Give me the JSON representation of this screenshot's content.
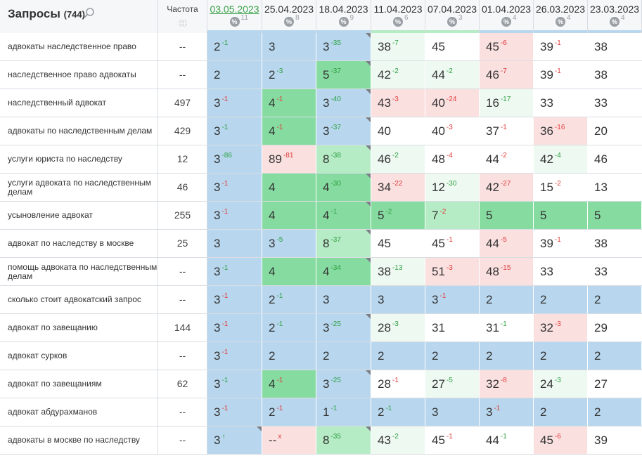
{
  "header": {
    "queries_title": "Запросы",
    "queries_count": "(744)",
    "frequency_label": "Частота"
  },
  "columns": [
    {
      "date": "03.05.2023",
      "count": "11",
      "active": true
    },
    {
      "date": "25.04.2023",
      "count": "8"
    },
    {
      "date": "18.04.2023",
      "count": "9"
    },
    {
      "date": "11.04.2023",
      "count": "6"
    },
    {
      "date": "07.04.2023",
      "count": "3"
    },
    {
      "date": "01.04.2023",
      "count": "4"
    },
    {
      "date": "26.03.2023",
      "count": "4"
    },
    {
      "date": "23.03.2023",
      "count": "4"
    }
  ],
  "colors": {
    "blue": "#b8d7ee",
    "green": "#86dba0",
    "light_green": "#b5ebc5",
    "pale_green": "#eef9f1",
    "red": "#fbe0e0",
    "up": "#2ea043",
    "down": "#e23b3b"
  },
  "rows": [
    {
      "query": "адвокаты наследственное право",
      "freq": "--",
      "cells": [
        {
          "v": "2",
          "d": "-1",
          "t": "up",
          "bg": "blue"
        },
        {
          "v": "3",
          "bg": "blue"
        },
        {
          "v": "3",
          "d": "-35",
          "t": "up",
          "bg": "blue",
          "corner": true
        },
        {
          "v": "38",
          "d": "-7",
          "t": "up",
          "bg": "pale"
        },
        {
          "v": "45",
          "bg": "white"
        },
        {
          "v": "45",
          "d": "-6",
          "t": "dn",
          "bg": "red"
        },
        {
          "v": "39",
          "d": "-1",
          "t": "dn",
          "bg": "white"
        },
        {
          "v": "38",
          "bg": "white"
        }
      ]
    },
    {
      "query": "наследственное право адвокаты",
      "freq": "--",
      "cells": [
        {
          "v": "2",
          "bg": "blue"
        },
        {
          "v": "2",
          "d": "-3",
          "t": "up",
          "bg": "blue"
        },
        {
          "v": "5",
          "d": "-37",
          "t": "up",
          "bg": "green",
          "corner": true
        },
        {
          "v": "42",
          "d": "-2",
          "t": "up",
          "bg": "pale"
        },
        {
          "v": "44",
          "d": "-2",
          "t": "up",
          "bg": "pale"
        },
        {
          "v": "46",
          "d": "-7",
          "t": "dn",
          "bg": "red"
        },
        {
          "v": "39",
          "d": "-1",
          "t": "dn",
          "bg": "white"
        },
        {
          "v": "38",
          "bg": "white"
        }
      ]
    },
    {
      "query": "наследственный адвокат",
      "freq": "497",
      "cells": [
        {
          "v": "3",
          "d": "-1",
          "t": "dn",
          "bg": "blue"
        },
        {
          "v": "4",
          "d": "-1",
          "t": "dn",
          "bg": "green"
        },
        {
          "v": "3",
          "d": "-40",
          "t": "up",
          "bg": "blue",
          "corner": true
        },
        {
          "v": "43",
          "d": "-3",
          "t": "dn",
          "bg": "red"
        },
        {
          "v": "40",
          "d": "-24",
          "t": "dn",
          "bg": "red"
        },
        {
          "v": "16",
          "d": "-17",
          "t": "up",
          "bg": "pale"
        },
        {
          "v": "33",
          "bg": "white"
        },
        {
          "v": "33",
          "bg": "white"
        }
      ]
    },
    {
      "query": "адвокаты по наследственным делам",
      "freq": "429",
      "cells": [
        {
          "v": "3",
          "d": "-1",
          "t": "up",
          "bg": "blue"
        },
        {
          "v": "4",
          "d": "-1",
          "t": "dn",
          "bg": "green"
        },
        {
          "v": "3",
          "d": "-37",
          "t": "up",
          "bg": "blue",
          "corner": true
        },
        {
          "v": "40",
          "bg": "white"
        },
        {
          "v": "40",
          "d": "-3",
          "t": "dn",
          "bg": "white"
        },
        {
          "v": "37",
          "d": "-1",
          "t": "dn",
          "bg": "white"
        },
        {
          "v": "36",
          "d": "-16",
          "t": "dn",
          "bg": "red"
        },
        {
          "v": "20",
          "bg": "white"
        }
      ]
    },
    {
      "query": "услуги юриста по наследству",
      "freq": "12",
      "cells": [
        {
          "v": "3",
          "d": "-86",
          "t": "up",
          "bg": "blue"
        },
        {
          "v": "89",
          "d": "-81",
          "t": "dn",
          "bg": "red"
        },
        {
          "v": "8",
          "d": "-38",
          "t": "up",
          "bg": "lgreen",
          "corner": true
        },
        {
          "v": "46",
          "d": "-2",
          "t": "up",
          "bg": "pale"
        },
        {
          "v": "48",
          "d": "-4",
          "t": "dn",
          "bg": "white"
        },
        {
          "v": "44",
          "d": "-2",
          "t": "dn",
          "bg": "white"
        },
        {
          "v": "42",
          "d": "-4",
          "t": "up",
          "bg": "pale"
        },
        {
          "v": "46",
          "bg": "white"
        }
      ]
    },
    {
      "query": "услуги адвоката по наследственным делам",
      "freq": "46",
      "cells": [
        {
          "v": "3",
          "d": "-1",
          "t": "dn",
          "bg": "blue"
        },
        {
          "v": "4",
          "bg": "green"
        },
        {
          "v": "4",
          "d": "-30",
          "t": "up",
          "bg": "green",
          "corner": true
        },
        {
          "v": "34",
          "d": "-22",
          "t": "dn",
          "bg": "red"
        },
        {
          "v": "12",
          "d": "-30",
          "t": "up",
          "bg": "pale"
        },
        {
          "v": "42",
          "d": "-27",
          "t": "dn",
          "bg": "red"
        },
        {
          "v": "15",
          "d": "-2",
          "t": "dn",
          "bg": "white"
        },
        {
          "v": "13",
          "bg": "white"
        }
      ]
    },
    {
      "query": "усыновление адвокат",
      "freq": "255",
      "cells": [
        {
          "v": "3",
          "d": "-1",
          "t": "dn",
          "bg": "blue"
        },
        {
          "v": "4",
          "bg": "green"
        },
        {
          "v": "4",
          "d": "-1",
          "t": "up",
          "bg": "green",
          "corner": true
        },
        {
          "v": "5",
          "d": "-2",
          "t": "up",
          "bg": "green"
        },
        {
          "v": "7",
          "d": "-2",
          "t": "dn",
          "bg": "lgreen"
        },
        {
          "v": "5",
          "bg": "green"
        },
        {
          "v": "5",
          "bg": "green"
        },
        {
          "v": "5",
          "bg": "green"
        }
      ]
    },
    {
      "query": "адвокат по наследству в москве",
      "freq": "25",
      "cells": [
        {
          "v": "3",
          "bg": "blue"
        },
        {
          "v": "3",
          "d": "-5",
          "t": "up",
          "bg": "blue"
        },
        {
          "v": "8",
          "d": "-37",
          "t": "up",
          "bg": "lgreen",
          "corner": true
        },
        {
          "v": "45",
          "bg": "white"
        },
        {
          "v": "45",
          "d": "-1",
          "t": "dn",
          "bg": "white"
        },
        {
          "v": "44",
          "d": "-5",
          "t": "dn",
          "bg": "red"
        },
        {
          "v": "39",
          "d": "-1",
          "t": "dn",
          "bg": "white"
        },
        {
          "v": "38",
          "bg": "white"
        }
      ]
    },
    {
      "query": "помощь адвоката по наследственным делам",
      "freq": "--",
      "cells": [
        {
          "v": "3",
          "d": "-1",
          "t": "up",
          "bg": "blue"
        },
        {
          "v": "4",
          "bg": "green"
        },
        {
          "v": "4",
          "d": "-34",
          "t": "up",
          "bg": "green",
          "corner": true
        },
        {
          "v": "38",
          "d": "-13",
          "t": "up",
          "bg": "pale"
        },
        {
          "v": "51",
          "d": "-3",
          "t": "dn",
          "bg": "red"
        },
        {
          "v": "48",
          "d": "-15",
          "t": "dn",
          "bg": "red"
        },
        {
          "v": "33",
          "bg": "white"
        },
        {
          "v": "33",
          "bg": "white"
        }
      ]
    },
    {
      "query": "сколько стоит адвокатский запрос",
      "freq": "--",
      "cells": [
        {
          "v": "3",
          "d": "-1",
          "t": "dn",
          "bg": "blue"
        },
        {
          "v": "2",
          "d": "-1",
          "t": "up",
          "bg": "blue"
        },
        {
          "v": "3",
          "bg": "blue"
        },
        {
          "v": "3",
          "bg": "blue"
        },
        {
          "v": "3",
          "d": "-1",
          "t": "dn",
          "bg": "blue"
        },
        {
          "v": "2",
          "bg": "blue"
        },
        {
          "v": "2",
          "bg": "blue"
        },
        {
          "v": "2",
          "bg": "blue"
        }
      ]
    },
    {
      "query": "адвокат по завещанию",
      "freq": "144",
      "cells": [
        {
          "v": "3",
          "d": "-1",
          "t": "dn",
          "bg": "blue"
        },
        {
          "v": "2",
          "d": "-1",
          "t": "up",
          "bg": "blue"
        },
        {
          "v": "3",
          "d": "-25",
          "t": "up",
          "bg": "blue",
          "corner": true
        },
        {
          "v": "28",
          "d": "-3",
          "t": "up",
          "bg": "pale"
        },
        {
          "v": "31",
          "bg": "white"
        },
        {
          "v": "31",
          "d": "-1",
          "t": "up",
          "bg": "white"
        },
        {
          "v": "32",
          "d": "-3",
          "t": "dn",
          "bg": "red"
        },
        {
          "v": "29",
          "bg": "white"
        }
      ]
    },
    {
      "query": "адвокат сурков",
      "freq": "--",
      "cells": [
        {
          "v": "3",
          "d": "-1",
          "t": "dn",
          "bg": "blue"
        },
        {
          "v": "2",
          "bg": "blue"
        },
        {
          "v": "2",
          "bg": "blue"
        },
        {
          "v": "2",
          "bg": "blue"
        },
        {
          "v": "2",
          "bg": "blue"
        },
        {
          "v": "2",
          "bg": "blue"
        },
        {
          "v": "2",
          "bg": "blue"
        },
        {
          "v": "2",
          "bg": "blue"
        }
      ]
    },
    {
      "query": "адвокат по завещаниям",
      "freq": "62",
      "cells": [
        {
          "v": "3",
          "d": "-1",
          "t": "up",
          "bg": "blue"
        },
        {
          "v": "4",
          "d": "-1",
          "t": "dn",
          "bg": "green"
        },
        {
          "v": "3",
          "d": "-25",
          "t": "up",
          "bg": "blue",
          "corner": true
        },
        {
          "v": "28",
          "d": "-1",
          "t": "dn",
          "bg": "white"
        },
        {
          "v": "27",
          "d": "-5",
          "t": "up",
          "bg": "pale"
        },
        {
          "v": "32",
          "d": "-8",
          "t": "dn",
          "bg": "red"
        },
        {
          "v": "24",
          "d": "-3",
          "t": "up",
          "bg": "pale"
        },
        {
          "v": "27",
          "bg": "white"
        }
      ]
    },
    {
      "query": "адвокат абдурахманов",
      "freq": "--",
      "cells": [
        {
          "v": "3",
          "d": "-1",
          "t": "dn",
          "bg": "blue"
        },
        {
          "v": "2",
          "d": "-1",
          "t": "dn",
          "bg": "blue"
        },
        {
          "v": "1",
          "d": "-1",
          "t": "up",
          "bg": "blue"
        },
        {
          "v": "2",
          "d": "-1",
          "t": "up",
          "bg": "blue"
        },
        {
          "v": "3",
          "bg": "blue"
        },
        {
          "v": "3",
          "d": "-1",
          "t": "dn",
          "bg": "blue"
        },
        {
          "v": "2",
          "bg": "blue"
        },
        {
          "v": "2",
          "bg": "blue"
        }
      ]
    },
    {
      "query": "адвокаты в москве по наследству",
      "freq": "--",
      "cells": [
        {
          "v": "3",
          "d": "↑",
          "t": "up",
          "bg": "blue",
          "corner": true
        },
        {
          "v": "--",
          "d": "x",
          "t": "dn",
          "bg": "red"
        },
        {
          "v": "8",
          "d": "-35",
          "t": "up",
          "bg": "lgreen",
          "corner": true
        },
        {
          "v": "43",
          "d": "-2",
          "t": "up",
          "bg": "pale"
        },
        {
          "v": "45",
          "d": "-1",
          "t": "dn",
          "bg": "white"
        },
        {
          "v": "44",
          "d": "-1",
          "t": "up",
          "bg": "white"
        },
        {
          "v": "45",
          "d": "-6",
          "t": "dn",
          "bg": "red"
        },
        {
          "v": "39",
          "bg": "white"
        }
      ]
    }
  ]
}
